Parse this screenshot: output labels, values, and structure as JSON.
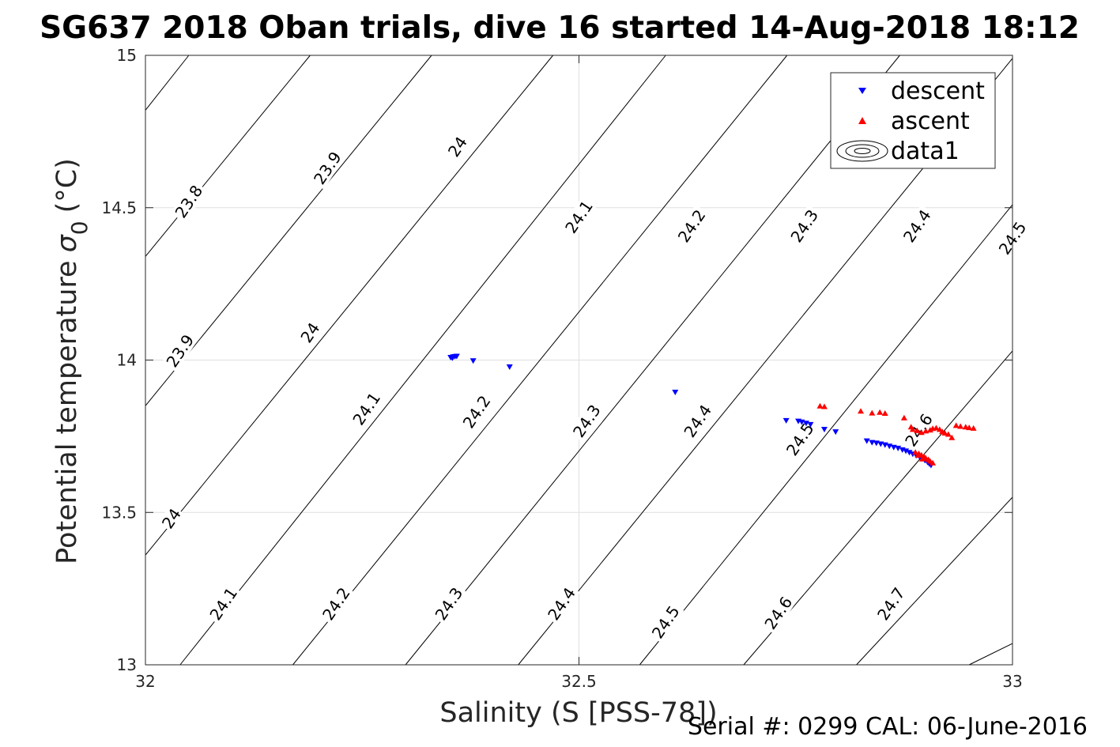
{
  "chart_data": {
    "type": "scatter",
    "title": "SG637 2018 Oban trials, dive 16 started 14-Aug-2018 18:12",
    "xlabel": "Salinity (S [PSS-78])",
    "ylabel": "Potential temperature",
    "ylabel_sigma": "σ",
    "ylabel_sub": "0",
    "ylabel_unit": "(°C)",
    "footer": "Serial #: 0299 CAL: 06-June-2016",
    "xlim": [
      32,
      33
    ],
    "ylim": [
      13,
      15
    ],
    "xticks": [
      32,
      32.5,
      33
    ],
    "xtick_labels": [
      "32",
      "32.5",
      "33"
    ],
    "yticks": [
      13,
      13.5,
      14,
      14.5,
      15
    ],
    "ytick_labels": [
      "13",
      "13.5",
      "14",
      "14.5",
      "15"
    ],
    "grid": true,
    "legend_position": "top-right",
    "legend": [
      {
        "label": "descent",
        "marker": "triangle-down",
        "color": "#0000ff"
      },
      {
        "label": "ascent",
        "marker": "triangle-up",
        "color": "#ff0000"
      },
      {
        "label": "data1",
        "marker": "contour",
        "color": "#000000"
      }
    ],
    "contour_lines": [
      {
        "x0": 32.0,
        "y0": 14.82,
        "x1": 32.05,
        "y1": 15.0
      },
      {
        "x0": 32.0,
        "y0": 14.34,
        "x1": 32.19,
        "y1": 15.0
      },
      {
        "x0": 32.0,
        "y0": 13.85,
        "x1": 32.33,
        "y1": 15.0
      },
      {
        "x0": 32.0,
        "y0": 13.36,
        "x1": 32.47,
        "y1": 15.0
      },
      {
        "x0": 32.04,
        "y0": 13.0,
        "x1": 32.6,
        "y1": 15.0
      },
      {
        "x0": 32.17,
        "y0": 13.0,
        "x1": 32.74,
        "y1": 15.0
      },
      {
        "x0": 32.3,
        "y0": 13.0,
        "x1": 32.87,
        "y1": 15.0
      },
      {
        "x0": 32.43,
        "y0": 13.0,
        "x1": 33.0,
        "y1": 14.99
      },
      {
        "x0": 32.57,
        "y0": 13.0,
        "x1": 33.0,
        "y1": 14.51
      },
      {
        "x0": 32.69,
        "y0": 13.0,
        "x1": 33.0,
        "y1": 14.03
      },
      {
        "x0": 32.82,
        "y0": 13.0,
        "x1": 33.0,
        "y1": 13.55
      },
      {
        "x0": 32.95,
        "y0": 13.0,
        "x1": 33.0,
        "y1": 13.07
      }
    ],
    "contour_labels": [
      {
        "text": "23.8",
        "x": 32.05,
        "y": 14.52
      },
      {
        "text": "23.9",
        "x": 32.21,
        "y": 14.63
      },
      {
        "text": "24",
        "x": 32.36,
        "y": 14.7
      },
      {
        "text": "24.1",
        "x": 32.5,
        "y": 14.47
      },
      {
        "text": "24.2",
        "x": 32.63,
        "y": 14.44
      },
      {
        "text": "24.3",
        "x": 32.76,
        "y": 14.44
      },
      {
        "text": "24.4",
        "x": 32.89,
        "y": 14.44
      },
      {
        "text": "24.5",
        "x": 33.0,
        "y": 14.4
      },
      {
        "text": "23.9",
        "x": 32.04,
        "y": 14.03
      },
      {
        "text": "24",
        "x": 32.19,
        "y": 14.09
      },
      {
        "text": "24.1",
        "x": 32.255,
        "y": 13.84
      },
      {
        "text": "24.2",
        "x": 32.382,
        "y": 13.83
      },
      {
        "text": "24.3",
        "x": 32.509,
        "y": 13.8
      },
      {
        "text": "24.4",
        "x": 32.637,
        "y": 13.8
      },
      {
        "text": "24.5",
        "x": 32.755,
        "y": 13.74
      },
      {
        "text": "24.6",
        "x": 32.892,
        "y": 13.77
      },
      {
        "text": "24",
        "x": 32.03,
        "y": 13.48
      },
      {
        "text": "24.1",
        "x": 32.09,
        "y": 13.2
      },
      {
        "text": "24.2",
        "x": 32.22,
        "y": 13.2
      },
      {
        "text": "24.3",
        "x": 32.35,
        "y": 13.2
      },
      {
        "text": "24.4",
        "x": 32.48,
        "y": 13.2
      },
      {
        "text": "24.5",
        "x": 32.6,
        "y": 13.14
      },
      {
        "text": "24.6",
        "x": 32.73,
        "y": 13.17
      },
      {
        "text": "24.7",
        "x": 32.86,
        "y": 13.2
      }
    ],
    "series": [
      {
        "name": "descent",
        "marker": "triangle-down",
        "color": "#0000ff",
        "points": [
          [
            32.352,
            14.009
          ],
          [
            32.355,
            14.011
          ],
          [
            32.357,
            14.012
          ],
          [
            32.359,
            14.013
          ],
          [
            32.354,
            14.007
          ],
          [
            32.378,
            13.998
          ],
          [
            32.42,
            13.978
          ],
          [
            32.611,
            13.895
          ],
          [
            32.739,
            13.802
          ],
          [
            32.753,
            13.8
          ],
          [
            32.757,
            13.797
          ],
          [
            32.762,
            13.793
          ],
          [
            32.767,
            13.789
          ],
          [
            32.783,
            13.773
          ],
          [
            32.796,
            13.765
          ],
          [
            32.832,
            13.735
          ],
          [
            32.838,
            13.73
          ],
          [
            32.843,
            13.728
          ],
          [
            32.848,
            13.725
          ],
          [
            32.853,
            13.722
          ],
          [
            32.858,
            13.718
          ],
          [
            32.863,
            13.714
          ],
          [
            32.868,
            13.711
          ],
          [
            32.873,
            13.706
          ],
          [
            32.877,
            13.702
          ],
          [
            32.881,
            13.697
          ],
          [
            32.885,
            13.692
          ],
          [
            32.889,
            13.687
          ],
          [
            32.893,
            13.682
          ],
          [
            32.896,
            13.677
          ],
          [
            32.899,
            13.671
          ],
          [
            32.902,
            13.665
          ],
          [
            32.904,
            13.66
          ],
          [
            32.906,
            13.655
          ]
        ]
      },
      {
        "name": "ascent",
        "marker": "triangle-up",
        "color": "#ff0000",
        "points": [
          [
            32.778,
            13.849
          ],
          [
            32.783,
            13.847
          ],
          [
            32.825,
            13.832
          ],
          [
            32.838,
            13.826
          ],
          [
            32.847,
            13.828
          ],
          [
            32.853,
            13.825
          ],
          [
            32.875,
            13.81
          ],
          [
            32.883,
            13.78
          ],
          [
            32.885,
            13.772
          ],
          [
            32.89,
            13.768
          ],
          [
            32.895,
            13.762
          ],
          [
            32.9,
            13.767
          ],
          [
            32.905,
            13.77
          ],
          [
            32.908,
            13.775
          ],
          [
            32.912,
            13.777
          ],
          [
            32.916,
            13.772
          ],
          [
            32.919,
            13.765
          ],
          [
            32.922,
            13.76
          ],
          [
            32.926,
            13.756
          ],
          [
            32.93,
            13.745
          ],
          [
            32.935,
            13.785
          ],
          [
            32.94,
            13.782
          ],
          [
            32.946,
            13.78
          ],
          [
            32.95,
            13.778
          ],
          [
            32.955,
            13.776
          ],
          [
            32.888,
            13.697
          ],
          [
            32.892,
            13.693
          ],
          [
            32.895,
            13.688
          ],
          [
            32.898,
            13.683
          ],
          [
            32.9,
            13.678
          ],
          [
            32.903,
            13.673
          ],
          [
            32.905,
            13.668
          ],
          [
            32.908,
            13.662
          ],
          [
            32.891,
            13.687
          ],
          [
            32.896,
            13.675
          ]
        ]
      }
    ]
  }
}
